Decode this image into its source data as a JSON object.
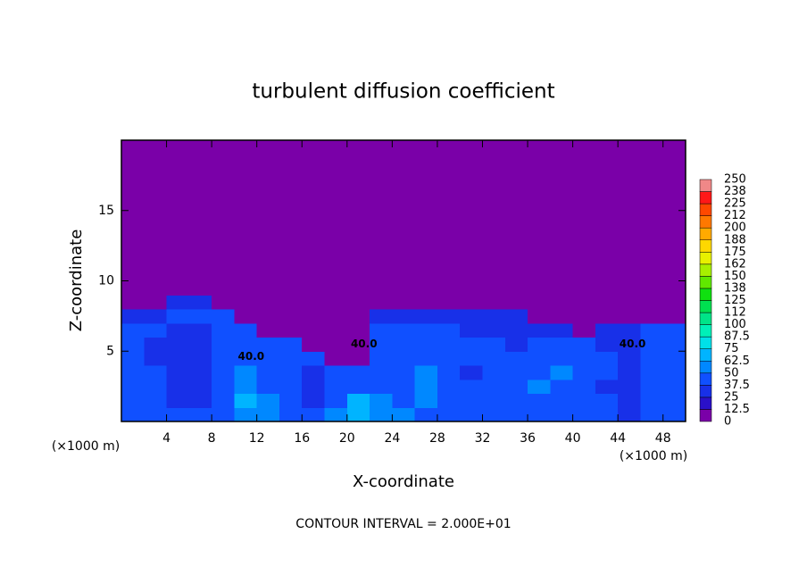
{
  "chart_data": {
    "type": "contour",
    "title": "turbulent diffusion coefficient",
    "xlabel": "X-coordinate",
    "ylabel": "Z-coordinate",
    "x_unit_label": "(×1000 m)",
    "footer": "CONTOUR INTERVAL = 2.000E+01",
    "xlim": [
      0,
      50
    ],
    "ylim": [
      0,
      20
    ],
    "xticks": [
      4,
      8,
      12,
      16,
      20,
      24,
      28,
      32,
      36,
      40,
      44,
      48
    ],
    "yticks": [
      5,
      10,
      15
    ],
    "x": [
      1,
      3,
      5,
      7,
      9,
      11,
      13,
      15,
      17,
      19,
      21,
      23,
      25,
      27,
      29,
      31,
      33,
      35,
      37,
      39,
      41,
      43,
      45,
      47,
      49
    ],
    "y": [
      0.5,
      1.5,
      2.5,
      3.5,
      4.5,
      5.5,
      6.5,
      7.5,
      8.5,
      9.5,
      10.5,
      11.5,
      12.5,
      13.5,
      14.5,
      15.5,
      16.5,
      17.5,
      18.5,
      19.5
    ],
    "z": [
      [
        45,
        40,
        40,
        40,
        45,
        60,
        55,
        45,
        40,
        55,
        70,
        60,
        55,
        40,
        45,
        40,
        40,
        40,
        40,
        45,
        40,
        40,
        35,
        40,
        45
      ],
      [
        45,
        40,
        35,
        35,
        40,
        65,
        50,
        40,
        35,
        45,
        65,
        55,
        45,
        50,
        45,
        45,
        45,
        40,
        45,
        40,
        45,
        40,
        35,
        40,
        40
      ],
      [
        45,
        45,
        35,
        35,
        45,
        60,
        45,
        40,
        35,
        40,
        45,
        45,
        40,
        55,
        45,
        40,
        45,
        45,
        50,
        45,
        40,
        35,
        35,
        40,
        40
      ],
      [
        45,
        45,
        30,
        30,
        45,
        50,
        45,
        45,
        35,
        40,
        40,
        40,
        45,
        50,
        40,
        35,
        40,
        45,
        45,
        50,
        45,
        40,
        30,
        45,
        40
      ],
      [
        40,
        35,
        25,
        30,
        40,
        45,
        45,
        45,
        40,
        5,
        5,
        45,
        45,
        45,
        40,
        40,
        40,
        45,
        40,
        40,
        40,
        40,
        35,
        40,
        40
      ],
      [
        40,
        35,
        30,
        30,
        40,
        45,
        45,
        45,
        5,
        5,
        5,
        45,
        40,
        45,
        40,
        40,
        40,
        35,
        40,
        40,
        40,
        35,
        35,
        40,
        40
      ],
      [
        40,
        40,
        35,
        35,
        40,
        45,
        5,
        5,
        5,
        5,
        5,
        40,
        40,
        40,
        40,
        35,
        35,
        35,
        35,
        35,
        5,
        35,
        35,
        40,
        40
      ],
      [
        35,
        35,
        40,
        40,
        40,
        5,
        5,
        5,
        5,
        5,
        5,
        35,
        35,
        35,
        35,
        35,
        30,
        30,
        5,
        5,
        5,
        5,
        5,
        5,
        5
      ],
      [
        5,
        5,
        30,
        30,
        5,
        5,
        5,
        5,
        5,
        5,
        5,
        5,
        5,
        5,
        5,
        5,
        5,
        5,
        5,
        5,
        5,
        5,
        5,
        5,
        5
      ],
      [
        5,
        5,
        5,
        5,
        5,
        5,
        5,
        5,
        5,
        5,
        5,
        5,
        5,
        5,
        5,
        5,
        5,
        5,
        5,
        5,
        5,
        5,
        5,
        5,
        5
      ],
      [
        5,
        5,
        5,
        5,
        5,
        5,
        5,
        5,
        5,
        5,
        5,
        5,
        5,
        5,
        5,
        5,
        5,
        5,
        5,
        5,
        5,
        5,
        5,
        5,
        5
      ],
      [
        5,
        5,
        5,
        5,
        5,
        5,
        5,
        5,
        5,
        5,
        5,
        5,
        5,
        5,
        5,
        5,
        5,
        5,
        5,
        5,
        5,
        5,
        5,
        5,
        5
      ],
      [
        5,
        5,
        5,
        5,
        5,
        5,
        5,
        5,
        5,
        5,
        5,
        5,
        5,
        5,
        5,
        5,
        5,
        5,
        5,
        5,
        5,
        5,
        5,
        5,
        5
      ],
      [
        5,
        5,
        5,
        5,
        5,
        5,
        5,
        5,
        5,
        5,
        5,
        5,
        5,
        5,
        5,
        5,
        5,
        5,
        5,
        5,
        5,
        5,
        5,
        5,
        5
      ],
      [
        5,
        5,
        5,
        5,
        5,
        5,
        5,
        5,
        5,
        5,
        5,
        5,
        5,
        5,
        5,
        5,
        5,
        5,
        5,
        5,
        5,
        5,
        5,
        5,
        5
      ],
      [
        5,
        5,
        5,
        5,
        5,
        5,
        5,
        5,
        5,
        5,
        5,
        5,
        5,
        5,
        5,
        5,
        5,
        5,
        5,
        5,
        5,
        5,
        5,
        5,
        5
      ],
      [
        5,
        5,
        5,
        5,
        5,
        5,
        5,
        5,
        5,
        5,
        5,
        5,
        5,
        5,
        5,
        5,
        5,
        5,
        5,
        5,
        5,
        5,
        5,
        5,
        5
      ],
      [
        5,
        5,
        5,
        5,
        5,
        5,
        5,
        5,
        5,
        5,
        5,
        5,
        5,
        5,
        5,
        5,
        5,
        5,
        5,
        5,
        5,
        5,
        5,
        5,
        5
      ],
      [
        5,
        5,
        5,
        5,
        5,
        5,
        5,
        5,
        5,
        5,
        5,
        5,
        5,
        5,
        5,
        5,
        5,
        5,
        5,
        5,
        5,
        5,
        5,
        5,
        5
      ],
      [
        5,
        5,
        5,
        5,
        5,
        5,
        5,
        5,
        5,
        5,
        5,
        5,
        5,
        5,
        5,
        5,
        5,
        5,
        5,
        5,
        5,
        5,
        5,
        5,
        5
      ]
    ],
    "colorbar": {
      "levels": [
        0,
        12.5,
        25,
        37.5,
        50,
        62.5,
        75,
        87.5,
        100,
        112,
        125,
        138,
        150,
        162,
        175,
        188,
        200,
        212,
        225,
        238,
        250
      ],
      "colors": [
        "#7a00a8",
        "#2a10c8",
        "#1830e8",
        "#1050ff",
        "#0088ff",
        "#00b4ff",
        "#00e0e8",
        "#00f0b8",
        "#00e488",
        "#00e050",
        "#10e010",
        "#60e800",
        "#a8f000",
        "#e8f000",
        "#ffd800",
        "#ffaa00",
        "#ff7800",
        "#ff4800",
        "#ff1818",
        "#f08888"
      ]
    },
    "contour_labels": [
      {
        "text": "40.0",
        "x": 11.5,
        "y": 4.6
      },
      {
        "text": "40.0",
        "x": 21.5,
        "y": 5.5
      },
      {
        "text": "40.0",
        "x": 45.3,
        "y": 5.5
      }
    ]
  }
}
